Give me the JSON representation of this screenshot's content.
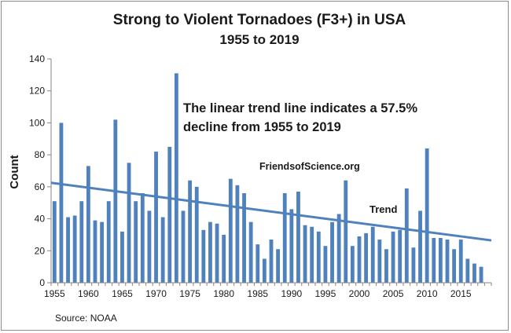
{
  "chart_data": {
    "type": "bar",
    "title": "Strong to Violent Tornadoes  (F3+) in USA",
    "subtitle": "1955 to 2019",
    "ylabel": "Count",
    "xlabel": "",
    "ylim": [
      0,
      140
    ],
    "yticks": [
      0,
      20,
      40,
      60,
      80,
      100,
      120,
      140
    ],
    "xticks": [
      1955,
      1960,
      1965,
      1970,
      1975,
      1980,
      1985,
      1990,
      1995,
      2000,
      2005,
      2010,
      2015
    ],
    "grid": false,
    "legend": "none",
    "colors": {
      "bar": "#4f81bd",
      "trend": "#4f81bd",
      "axis": "#868686"
    },
    "x": [
      1955,
      1956,
      1957,
      1958,
      1959,
      1960,
      1961,
      1962,
      1963,
      1964,
      1965,
      1966,
      1967,
      1968,
      1969,
      1970,
      1971,
      1972,
      1973,
      1974,
      1975,
      1976,
      1977,
      1978,
      1979,
      1980,
      1981,
      1982,
      1983,
      1984,
      1985,
      1986,
      1987,
      1988,
      1989,
      1990,
      1991,
      1992,
      1993,
      1994,
      1995,
      1996,
      1997,
      1998,
      1999,
      2000,
      2001,
      2002,
      2003,
      2004,
      2005,
      2006,
      2007,
      2008,
      2009,
      2010,
      2011,
      2012,
      2013,
      2014,
      2015,
      2016,
      2017,
      2018,
      2019
    ],
    "values": [
      51,
      100,
      41,
      42,
      51,
      73,
      39,
      38,
      51,
      102,
      32,
      75,
      51,
      56,
      45,
      82,
      41,
      85,
      131,
      45,
      64,
      60,
      33,
      38,
      37,
      30,
      65,
      61,
      56,
      38,
      24,
      15,
      27,
      21,
      56,
      46,
      57,
      36,
      35,
      32,
      23,
      38,
      43,
      64,
      23,
      29,
      31,
      35,
      27,
      21,
      32,
      33,
      59,
      22,
      45,
      84,
      28,
      28,
      27,
      21,
      27,
      15,
      12,
      10,
      0
    ],
    "trend": {
      "label": "Trend",
      "start": 62.5,
      "end": 26.5
    },
    "annotations": {
      "note_line1": "The linear trend line  indicates a 57.5%",
      "note_line2": "decline from 1955 to 2019",
      "site": "FriendsofScience.org",
      "source": "Source: NOAA"
    }
  }
}
